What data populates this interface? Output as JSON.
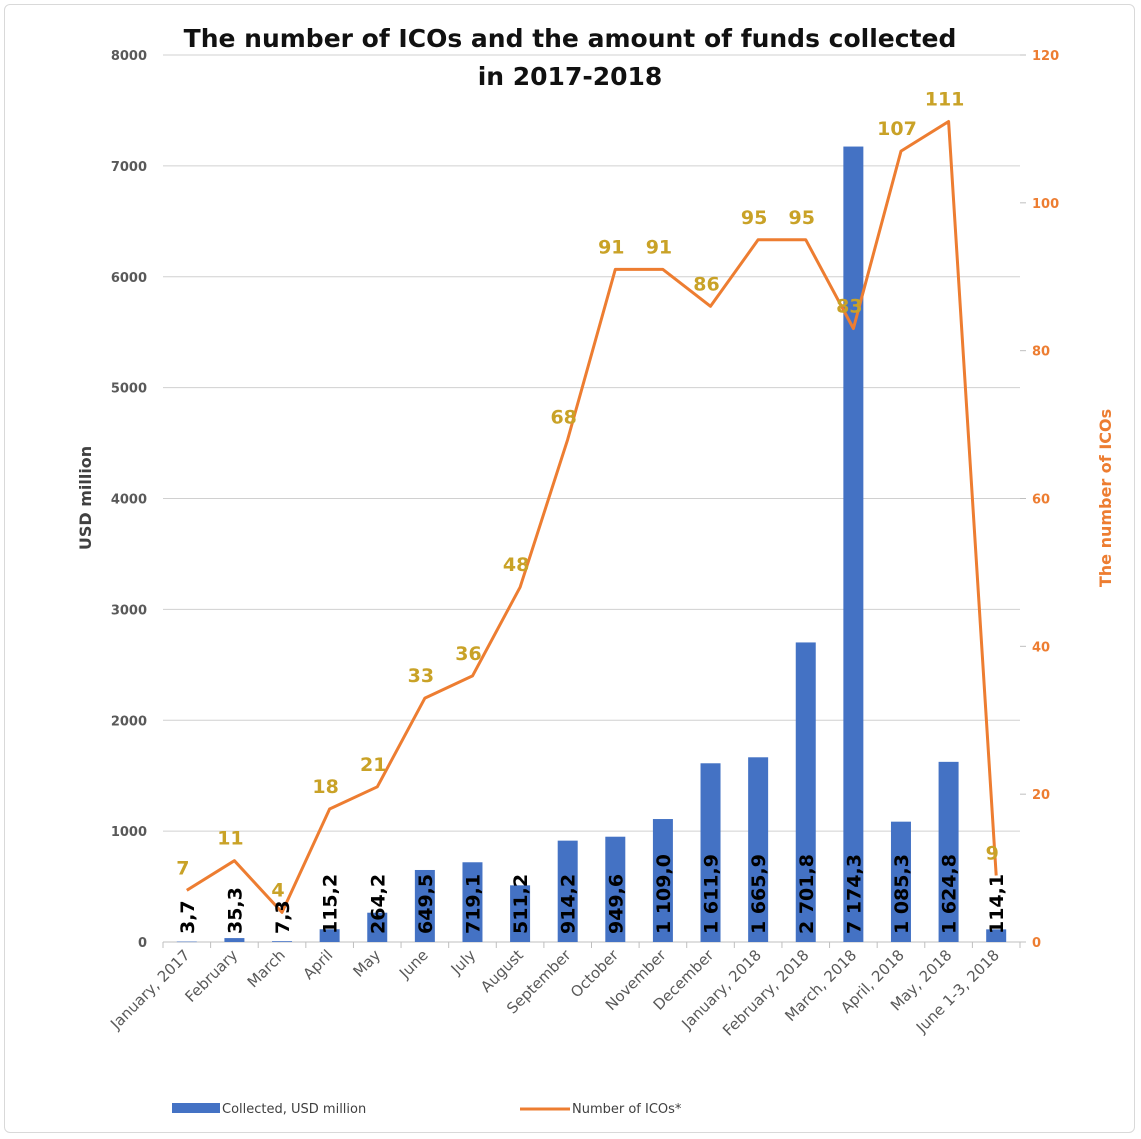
{
  "chart_data": {
    "type": "bar",
    "title_line1": "The number of ICOs and the amount of funds collected",
    "title_line2": "in 2017-2018",
    "categories": [
      "January, 2017",
      "February",
      "March",
      "April",
      "May",
      "June",
      "July",
      "August",
      "September",
      "October",
      "November",
      "December",
      "January, 2018",
      "February, 2018",
      "March, 2018",
      "April, 2018",
      "May, 2018",
      "June 1-3, 2018"
    ],
    "series": [
      {
        "name": "Collected, USD million",
        "type": "bar",
        "axis": "left",
        "color": "#4472c4",
        "values": [
          3.7,
          35.3,
          7.3,
          115.2,
          264.2,
          649.5,
          719.1,
          511.2,
          914.2,
          949.6,
          1109.0,
          1611.9,
          1665.9,
          2701.8,
          7174.3,
          1085.3,
          1624.8,
          114.1
        ],
        "labels": [
          "3,7",
          "35,3",
          "7,3",
          "115,2",
          "264,2",
          "649,5",
          "719,1",
          "511,2",
          "914,2",
          "949,6",
          "1 109,0",
          "1 611,9",
          "1 665,9",
          "2 701,8",
          "7 174,3",
          "1 085,3",
          "1 624,8",
          "114,1"
        ]
      },
      {
        "name": "Number of ICOs*",
        "type": "line",
        "axis": "right",
        "color": "#ed7d31",
        "label_color": "#c9a227",
        "values": [
          7,
          11,
          4,
          18,
          21,
          33,
          36,
          48,
          68,
          91,
          91,
          86,
          95,
          95,
          83,
          107,
          111,
          9
        ],
        "labels": [
          "7",
          "11",
          "4",
          "18",
          "21",
          "33",
          "36",
          "48",
          "68",
          "91",
          "91",
          "86",
          "95",
          "95",
          "83",
          "107",
          "111",
          "9"
        ]
      }
    ],
    "ylabel": "USD million",
    "ylabel_right": "The number of ICOs",
    "ylim": [
      0,
      8000
    ],
    "yticks": [
      "0",
      "1000",
      "2000",
      "3000",
      "4000",
      "5000",
      "6000",
      "7000",
      "8000"
    ],
    "ylim_right": [
      0,
      120
    ],
    "yticks_right": [
      "0",
      "20",
      "40",
      "60",
      "80",
      "100",
      "120"
    ],
    "grid": true,
    "legend_position": "bottom-left"
  }
}
